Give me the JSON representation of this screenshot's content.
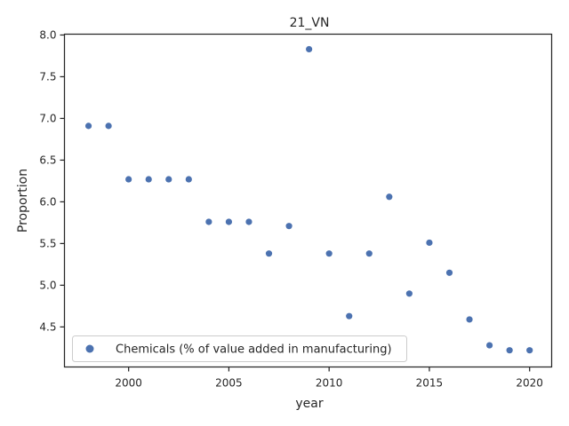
{
  "chart_data": {
    "type": "scatter",
    "title": "21_VN",
    "xlabel": "year",
    "ylabel": "Proportion",
    "xlim": [
      1996.8,
      2021.1
    ],
    "ylim": [
      4.02,
      8.01
    ],
    "xticks": [
      2000,
      2005,
      2010,
      2015,
      2020
    ],
    "yticks": [
      4.5,
      5.0,
      5.5,
      6.0,
      6.5,
      7.0,
      7.5,
      8.0
    ],
    "grid": false,
    "legend_position": "lower-left",
    "series": [
      {
        "name": "Chemicals (% of value added in manufacturing)",
        "color": "#4c72b0",
        "x": [
          1998,
          1999,
          2000,
          2001,
          2002,
          2003,
          2004,
          2005,
          2006,
          2007,
          2008,
          2009,
          2010,
          2011,
          2012,
          2013,
          2014,
          2015,
          2016,
          2017,
          2018,
          2019,
          2020
        ],
        "y": [
          6.91,
          6.91,
          6.27,
          6.27,
          6.27,
          6.27,
          5.76,
          5.76,
          5.76,
          5.38,
          5.71,
          7.83,
          5.38,
          4.63,
          5.38,
          6.06,
          4.9,
          5.51,
          5.15,
          4.59,
          4.28,
          4.22,
          4.22
        ]
      }
    ]
  }
}
